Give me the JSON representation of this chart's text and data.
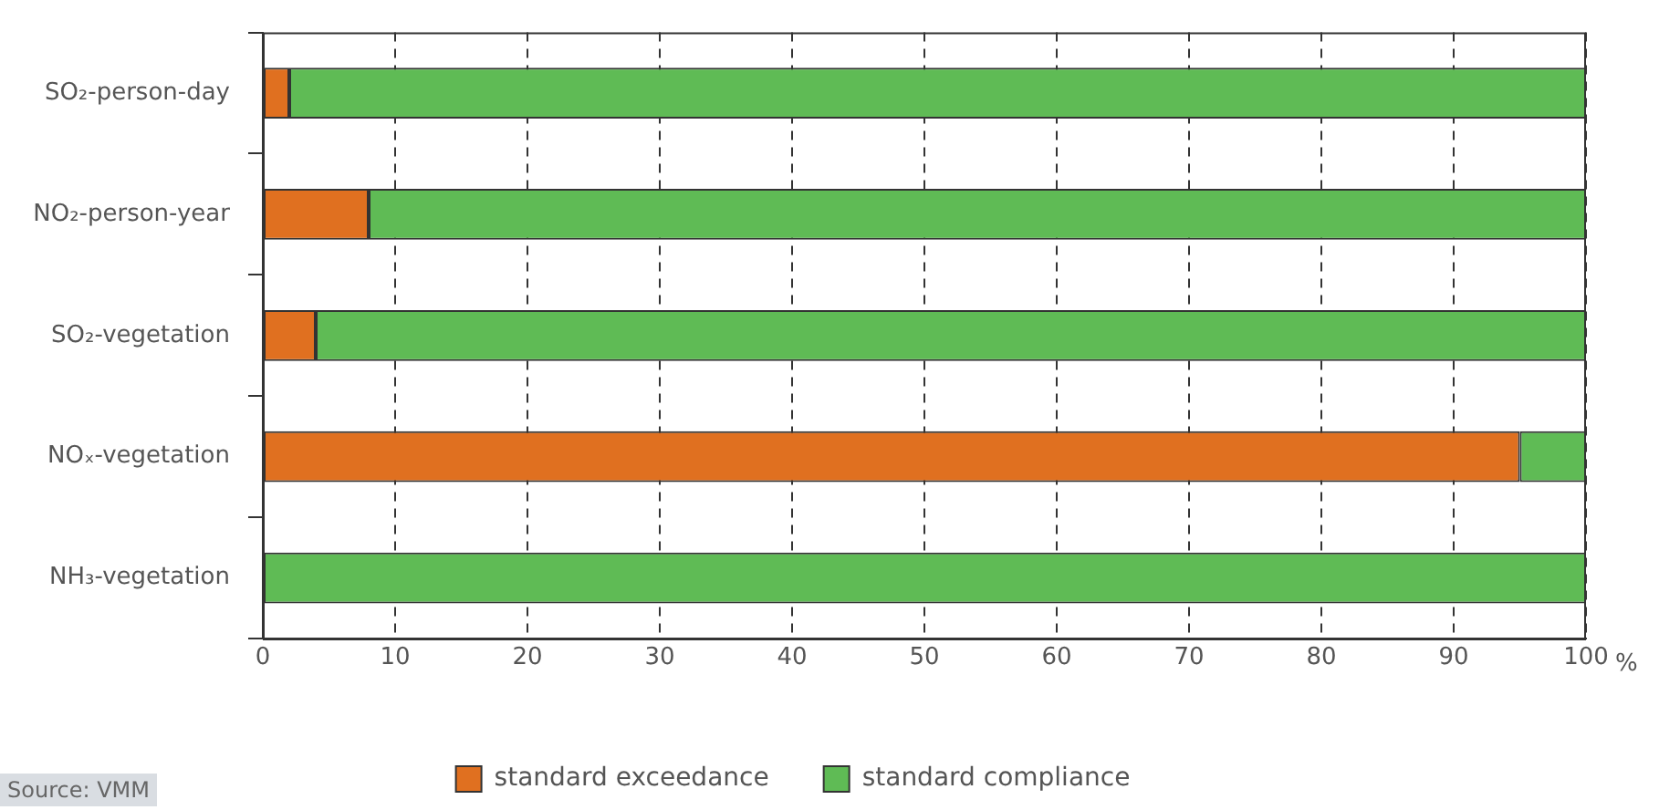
{
  "chart_data": {
    "type": "bar",
    "orientation": "horizontal",
    "stacked": true,
    "categories": [
      "SO₂-person-day",
      "NO₂-person-year",
      "SO₂-vegetation",
      "NOₓ-vegetation",
      "NH₃-vegetation"
    ],
    "series": [
      {
        "name": "standard exceedance",
        "color": "#e07020",
        "values": [
          2,
          8,
          4,
          95,
          0
        ]
      },
      {
        "name": "standard compliance",
        "color": "#5fbb55",
        "values": [
          98,
          92,
          96,
          5,
          100
        ]
      }
    ],
    "xlim": [
      0,
      100
    ],
    "xticks": [
      0,
      10,
      20,
      30,
      40,
      50,
      60,
      70,
      80,
      90,
      100
    ],
    "xlabel": "%",
    "grid": "x",
    "line_style": "dashed",
    "legend": "bottom",
    "annotations": [
      "Source: VMM"
    ]
  }
}
